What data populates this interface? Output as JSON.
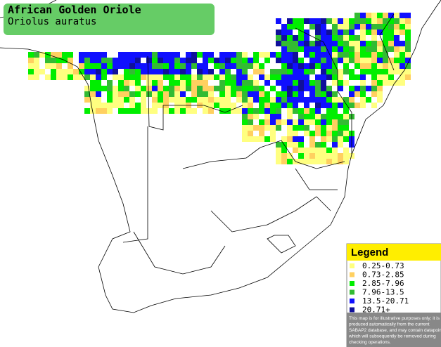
{
  "header": {
    "title": "African Golden Oriole",
    "subtitle": "Oriolus auratus"
  },
  "legend": {
    "title": "Legend",
    "items": [
      {
        "label": "0.25-0.73",
        "color": "#ffff80"
      },
      {
        "label": "0.73-2.85",
        "color": "#ffd060"
      },
      {
        "label": "2.85-7.96",
        "color": "#00ee00"
      },
      {
        "label": "7.96-13.5",
        "color": "#33bb33"
      },
      {
        "label": "13.5-20.71",
        "color": "#1010ff"
      },
      {
        "label": "20.71+",
        "color": "#10109a"
      }
    ],
    "disclaimer": [
      "This map is for illustrative purposes only; it is",
      "produced automatically from the current",
      "SABAP2 database, and may contain datapoints",
      "which will subsequently be removed during",
      "checking operations."
    ]
  }
}
